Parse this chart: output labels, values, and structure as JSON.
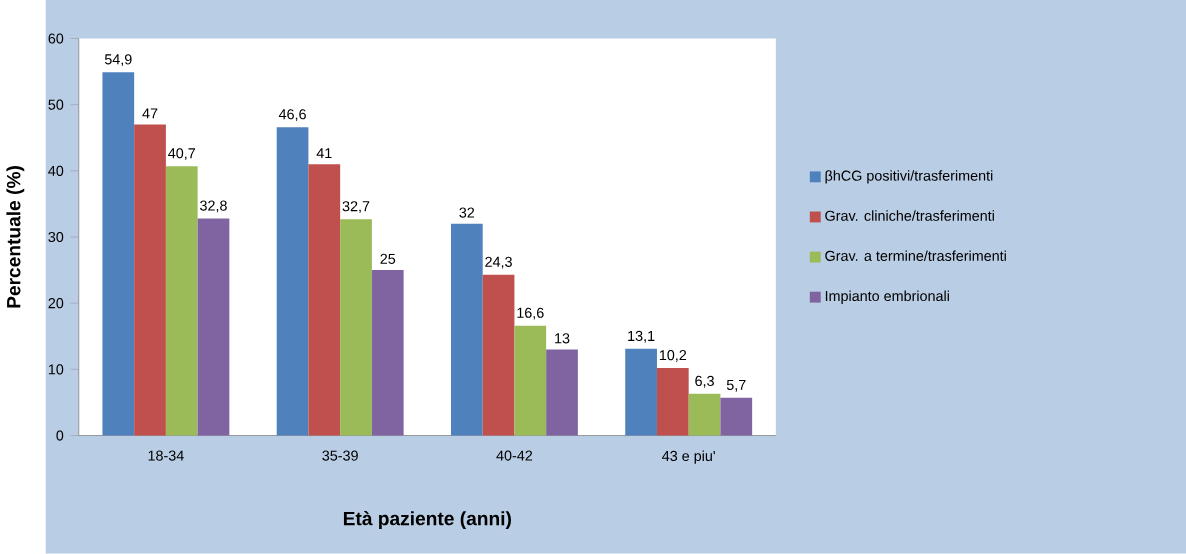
{
  "chart_data": {
    "type": "bar",
    "xlabel": "Età paziente (anni)",
    "ylabel": "Percentuale (%)",
    "categories": [
      "18-34",
      "35-39",
      "40-42",
      "43 e piu'"
    ],
    "series": [
      {
        "name": "βhCG positivi/trasferimenti",
        "color": "#4f81bd",
        "values": [
          54.9,
          46.6,
          32,
          13.1
        ],
        "value_labels": [
          "54,9",
          "46,6",
          "32",
          "13,1"
        ]
      },
      {
        "name": "Grav. cliniche/trasferimenti",
        "color": "#c0504d",
        "values": [
          47,
          41,
          24.3,
          10.2
        ],
        "value_labels": [
          "47",
          "41",
          "24,3",
          "10,2"
        ]
      },
      {
        "name": "Grav. a termine/trasferimenti",
        "color": "#9bbb59",
        "values": [
          40.7,
          32.7,
          16.6,
          6.3
        ],
        "value_labels": [
          "40,7",
          "32,7",
          "16,6",
          "6,3"
        ]
      },
      {
        "name": "Impianto embrionali",
        "color": "#8064a2",
        "values": [
          32.8,
          25,
          13,
          5.7
        ],
        "value_labels": [
          "32,8",
          "25",
          "13",
          "5,7"
        ]
      }
    ],
    "ylim": [
      0,
      60
    ],
    "yticks": [
      0,
      10,
      20,
      30,
      40,
      50,
      60
    ],
    "grid": false,
    "legend": "right"
  }
}
